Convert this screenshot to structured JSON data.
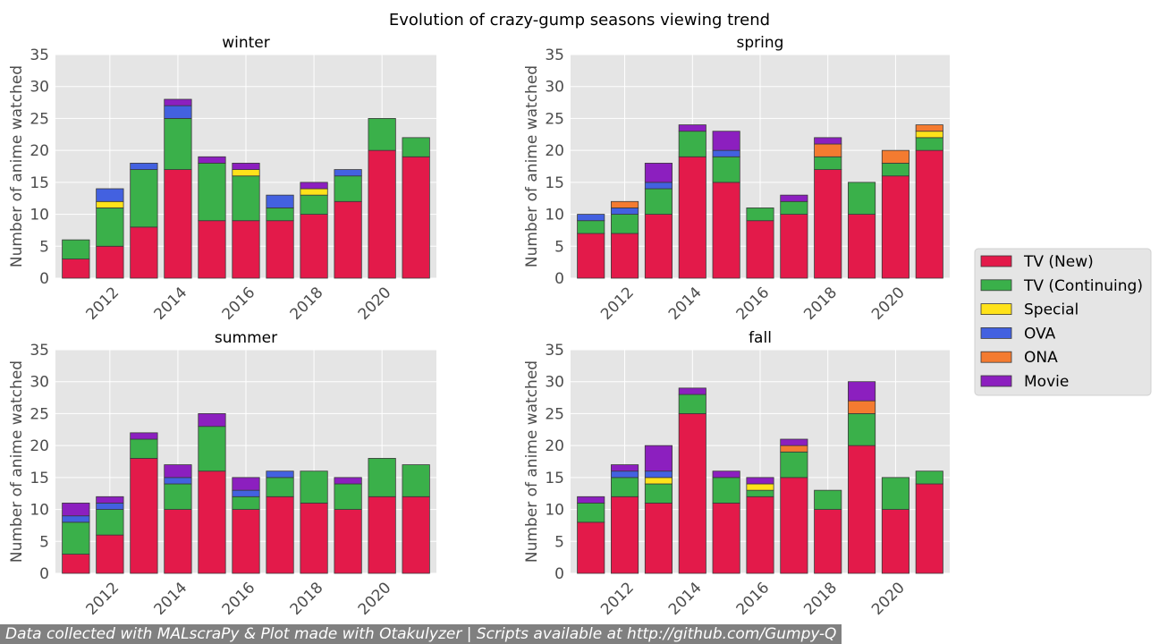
{
  "figure_title": "Evolution of crazy-gump seasons viewing trend",
  "footer": "Data collected with MALscraPy & Plot made with Otakulyzer | Scripts available at http://github.com/Gumpy-Q",
  "colors": {
    "TV (New)": "#e31a4a",
    "TV (Continuing)": "#3ab04a",
    "Special": "#ffe21a",
    "OVA": "#4361e0",
    "ONA": "#f47b30",
    "Movie": "#8c1fbf"
  },
  "legend": [
    "TV (New)",
    "TV (Continuing)",
    "Special",
    "OVA",
    "ONA",
    "Movie"
  ],
  "chart_data": [
    {
      "type": "bar",
      "stacked": true,
      "title": "winter",
      "ylabel": "Number of anime watched",
      "ylim": [
        0,
        35
      ],
      "yticks": [
        0,
        5,
        10,
        15,
        20,
        25,
        30,
        35
      ],
      "xticks": [
        2012,
        2014,
        2016,
        2018,
        2020
      ],
      "x": [
        2011,
        2012,
        2013,
        2014,
        2015,
        2016,
        2017,
        2018,
        2019,
        2020,
        2021
      ],
      "series": [
        {
          "name": "TV (New)",
          "values": [
            3,
            5,
            8,
            17,
            9,
            9,
            9,
            10,
            12,
            20,
            19
          ]
        },
        {
          "name": "TV (Continuing)",
          "values": [
            3,
            6,
            9,
            8,
            9,
            7,
            2,
            3,
            4,
            5,
            3
          ]
        },
        {
          "name": "Special",
          "values": [
            0,
            1,
            0,
            0,
            0,
            1,
            0,
            1,
            0,
            0,
            0
          ]
        },
        {
          "name": "OVA",
          "values": [
            0,
            2,
            1,
            2,
            0,
            0,
            2,
            0,
            1,
            0,
            0
          ]
        },
        {
          "name": "ONA",
          "values": [
            0,
            0,
            0,
            0,
            0,
            0,
            0,
            0,
            0,
            0,
            0
          ]
        },
        {
          "name": "Movie",
          "values": [
            0,
            0,
            0,
            1,
            1,
            1,
            0,
            1,
            0,
            0,
            0
          ]
        }
      ]
    },
    {
      "type": "bar",
      "stacked": true,
      "title": "spring",
      "ylabel": "Number of anime watched",
      "ylim": [
        0,
        35
      ],
      "yticks": [
        0,
        5,
        10,
        15,
        20,
        25,
        30,
        35
      ],
      "xticks": [
        2012,
        2014,
        2016,
        2018,
        2020
      ],
      "x": [
        2011,
        2012,
        2013,
        2014,
        2015,
        2016,
        2017,
        2018,
        2019,
        2020,
        2021
      ],
      "series": [
        {
          "name": "TV (New)",
          "values": [
            7,
            7,
            10,
            19,
            15,
            9,
            10,
            17,
            10,
            16,
            20
          ]
        },
        {
          "name": "TV (Continuing)",
          "values": [
            2,
            3,
            4,
            4,
            4,
            2,
            2,
            2,
            5,
            2,
            2
          ]
        },
        {
          "name": "Special",
          "values": [
            0,
            0,
            0,
            0,
            0,
            0,
            0,
            0,
            0,
            0,
            1
          ]
        },
        {
          "name": "OVA",
          "values": [
            1,
            1,
            1,
            0,
            1,
            0,
            0,
            0,
            0,
            0,
            0
          ]
        },
        {
          "name": "ONA",
          "values": [
            0,
            1,
            0,
            0,
            0,
            0,
            0,
            2,
            0,
            2,
            1
          ]
        },
        {
          "name": "Movie",
          "values": [
            0,
            0,
            3,
            1,
            3,
            0,
            1,
            1,
            0,
            0,
            0
          ]
        }
      ]
    },
    {
      "type": "bar",
      "stacked": true,
      "title": "summer",
      "ylabel": "Number of anime watched",
      "ylim": [
        0,
        35
      ],
      "yticks": [
        0,
        5,
        10,
        15,
        20,
        25,
        30,
        35
      ],
      "xticks": [
        2012,
        2014,
        2016,
        2018,
        2020
      ],
      "x": [
        2011,
        2012,
        2013,
        2014,
        2015,
        2016,
        2017,
        2018,
        2019,
        2020,
        2021
      ],
      "series": [
        {
          "name": "TV (New)",
          "values": [
            3,
            6,
            18,
            10,
            16,
            10,
            12,
            11,
            10,
            12,
            12
          ]
        },
        {
          "name": "TV (Continuing)",
          "values": [
            5,
            4,
            3,
            4,
            7,
            2,
            3,
            5,
            4,
            6,
            5
          ]
        },
        {
          "name": "Special",
          "values": [
            0,
            0,
            0,
            0,
            0,
            0,
            0,
            0,
            0,
            0,
            0
          ]
        },
        {
          "name": "OVA",
          "values": [
            1,
            1,
            0,
            1,
            0,
            1,
            1,
            0,
            0,
            0,
            0
          ]
        },
        {
          "name": "ONA",
          "values": [
            0,
            0,
            0,
            0,
            0,
            0,
            0,
            0,
            0,
            0,
            0
          ]
        },
        {
          "name": "Movie",
          "values": [
            2,
            1,
            1,
            2,
            2,
            2,
            0,
            0,
            1,
            0,
            0
          ]
        }
      ]
    },
    {
      "type": "bar",
      "stacked": true,
      "title": "fall",
      "ylabel": "Number of anime watched",
      "ylim": [
        0,
        35
      ],
      "yticks": [
        0,
        5,
        10,
        15,
        20,
        25,
        30,
        35
      ],
      "xticks": [
        2012,
        2014,
        2016,
        2018,
        2020
      ],
      "x": [
        2011,
        2012,
        2013,
        2014,
        2015,
        2016,
        2017,
        2018,
        2019,
        2020,
        2021
      ],
      "series": [
        {
          "name": "TV (New)",
          "values": [
            8,
            12,
            11,
            25,
            11,
            12,
            15,
            10,
            20,
            10,
            14
          ]
        },
        {
          "name": "TV (Continuing)",
          "values": [
            3,
            3,
            3,
            3,
            4,
            1,
            4,
            3,
            5,
            5,
            2
          ]
        },
        {
          "name": "Special",
          "values": [
            0,
            0,
            1,
            0,
            0,
            1,
            0,
            0,
            0,
            0,
            0
          ]
        },
        {
          "name": "OVA",
          "values": [
            0,
            1,
            1,
            0,
            0,
            0,
            0,
            0,
            0,
            0,
            0
          ]
        },
        {
          "name": "ONA",
          "values": [
            0,
            0,
            0,
            0,
            0,
            0,
            1,
            0,
            2,
            0,
            0
          ]
        },
        {
          "name": "Movie",
          "values": [
            1,
            1,
            4,
            1,
            1,
            1,
            1,
            0,
            3,
            0,
            0
          ]
        }
      ]
    }
  ]
}
